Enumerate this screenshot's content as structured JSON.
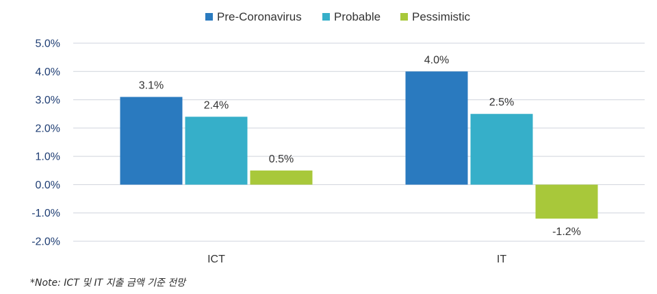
{
  "chart_data": {
    "type": "bar",
    "categories": [
      "ICT",
      "IT"
    ],
    "series": [
      {
        "name": "Pre-Coronavirus",
        "color": "#2a7abf",
        "values": [
          3.1,
          4.0
        ],
        "labels": [
          "3.1%",
          "4.0%"
        ]
      },
      {
        "name": "Probable",
        "color": "#36afc9",
        "values": [
          2.4,
          2.5
        ],
        "labels": [
          "2.4%",
          "2.5%"
        ]
      },
      {
        "name": "Pessimistic",
        "color": "#a8c83a",
        "values": [
          0.5,
          -1.2
        ],
        "labels": [
          "0.5%",
          "-1.2%"
        ]
      }
    ],
    "ylim": [
      -2.0,
      5.0
    ],
    "yticks": [
      5.0,
      4.0,
      3.0,
      2.0,
      1.0,
      0.0,
      -1.0,
      -2.0
    ],
    "ytick_labels": [
      "5.0%",
      "4.0%",
      "3.0%",
      "2.0%",
      "1.0%",
      "0.0%",
      "-1.0%",
      "-2.0%"
    ],
    "grid": true,
    "legend_position": "top-center",
    "title": "",
    "xlabel": "",
    "ylabel": ""
  },
  "note": "*Note: ICT 및 IT 지출 금액 기준 전망"
}
